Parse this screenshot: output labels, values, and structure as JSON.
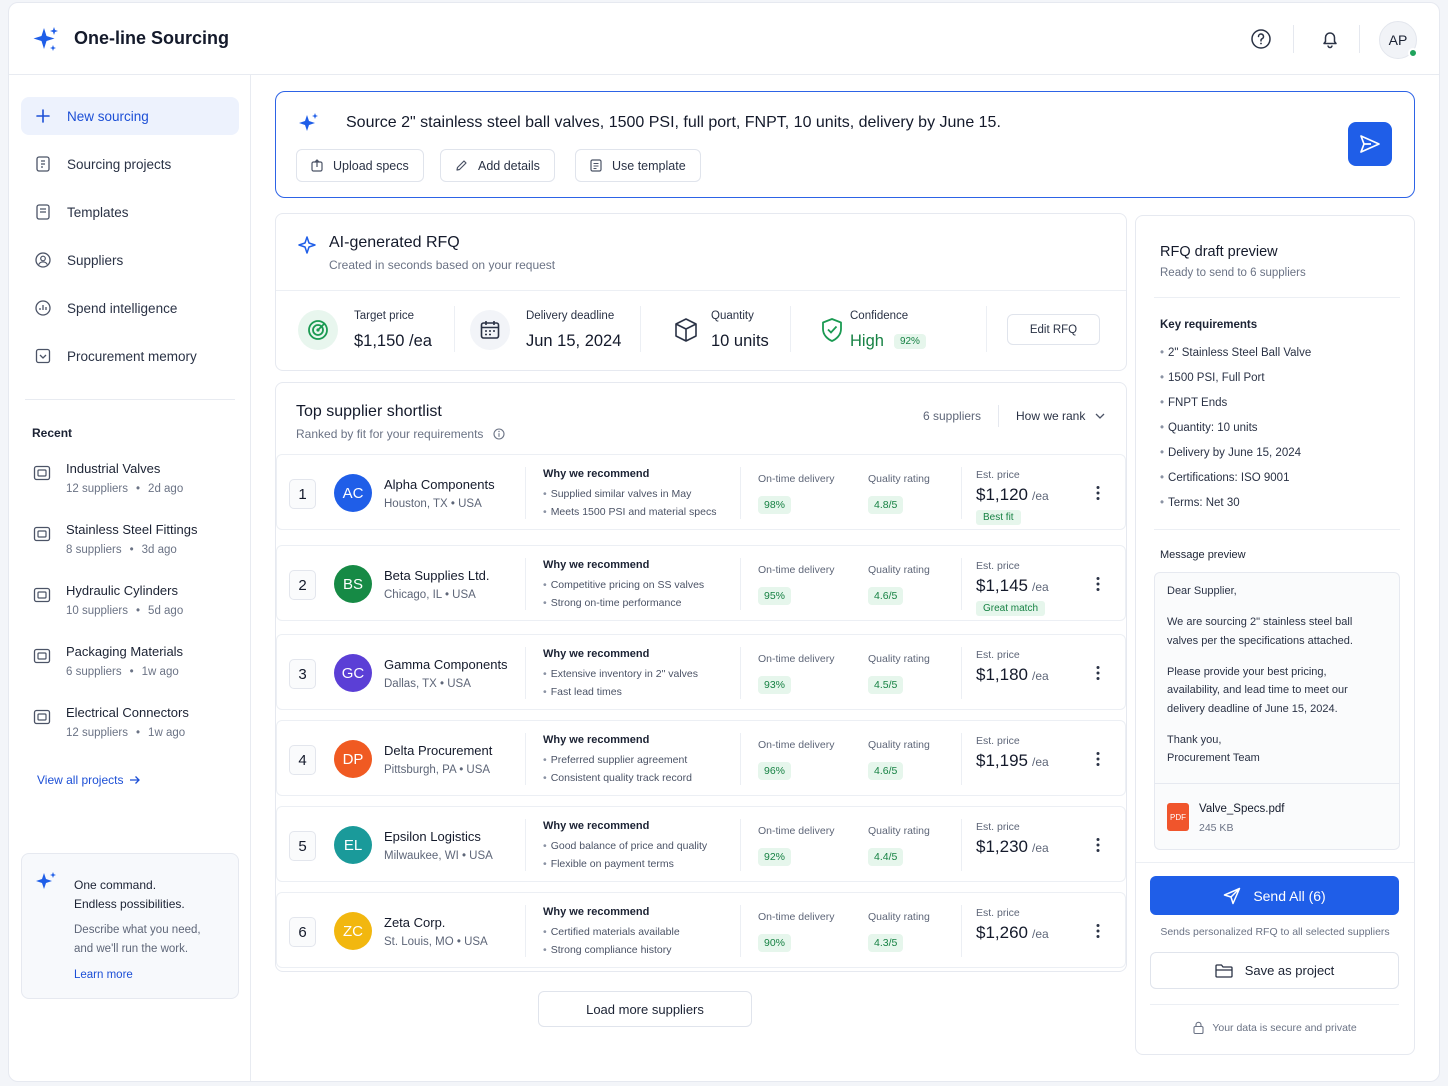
{
  "header": {
    "app_title": "One-line Sourcing",
    "avatar_initials": "AP",
    "brand_color": "#1f5ee8"
  },
  "sidebar": {
    "nav": [
      {
        "label": "New sourcing",
        "icon": "plus-icon",
        "active": true
      },
      {
        "label": "Sourcing projects",
        "icon": "document-icon"
      },
      {
        "label": "Templates",
        "icon": "template-icon"
      },
      {
        "label": "Suppliers",
        "icon": "suppliers-icon"
      },
      {
        "label": "Spend intelligence",
        "icon": "chart-icon"
      },
      {
        "label": "Procurement memory",
        "icon": "memory-icon"
      }
    ],
    "recent_heading": "Recent",
    "recent": [
      {
        "name": "Industrial Valves",
        "suppliers": "12 suppliers",
        "sep": "•",
        "age": "2d ago"
      },
      {
        "name": "Stainless Steel Fittings",
        "suppliers": "8 suppliers",
        "sep": "•",
        "age": "3d ago"
      },
      {
        "name": "Hydraulic Cylinders",
        "suppliers": "10 suppliers",
        "sep": "•",
        "age": "5d ago"
      },
      {
        "name": "Packaging Materials",
        "suppliers": "6 suppliers",
        "sep": "•",
        "age": "1w ago"
      },
      {
        "name": "Electrical Connectors",
        "suppliers": "12 suppliers",
        "sep": "•",
        "age": "1w ago"
      }
    ],
    "view_all": "View all projects",
    "promo": {
      "line1": "One command.",
      "line2": "Endless possibilities.",
      "desc1": "Describe what you need,",
      "desc2": "and we'll run the work.",
      "link": "Learn more"
    }
  },
  "command": {
    "text": "Source 2\" stainless steel ball valves, 1500 PSI, full port, FNPT, 10 units, delivery by June 15.",
    "chips": [
      "Upload specs",
      "Add details",
      "Use template"
    ]
  },
  "rfq": {
    "title": "AI-generated RFQ",
    "subtitle": "Created in seconds based on your request",
    "metrics": {
      "target_price_label": "Target price",
      "target_price_value": "$1,150 /ea",
      "delivery_label": "Delivery deadline",
      "delivery_value": "Jun 15, 2024",
      "quantity_label": "Quantity",
      "quantity_value": "10 units",
      "confidence_label": "Confidence",
      "confidence_value": "High",
      "confidence_pct": "92%"
    },
    "edit_label": "Edit RFQ"
  },
  "shortlist": {
    "title": "Top supplier shortlist",
    "subtitle": "Ranked by fit for your requirements",
    "count": "6 suppliers",
    "rank_label": "How we rank",
    "why_label": "Why we recommend",
    "ontime_label": "On-time delivery",
    "quality_label": "Quality rating",
    "price_label": "Est. price",
    "unit": "/ea",
    "suppliers": [
      {
        "rank": "1",
        "initials": "AC",
        "color": "#1f5ee8",
        "name": "Alpha Components",
        "loc": "Houston, TX • USA",
        "r1": "Supplied similar valves in May",
        "r2": "Meets 1500 PSI and material specs",
        "ontime": "98%",
        "quality": "4.8/5",
        "price": "$1,120",
        "badge": "Best fit"
      },
      {
        "rank": "2",
        "initials": "BS",
        "color": "#168a45",
        "name": "Beta Supplies Ltd.",
        "loc": "Chicago, IL • USA",
        "r1": "Competitive pricing on SS valves",
        "r2": "Strong on-time performance",
        "ontime": "95%",
        "quality": "4.6/5",
        "price": "$1,145",
        "badge": "Great match"
      },
      {
        "rank": "3",
        "initials": "GC",
        "color": "#5b3fd6",
        "name": "Gamma Components",
        "loc": "Dallas, TX • USA",
        "r1": "Extensive inventory in 2\" valves",
        "r2": "Fast lead times",
        "ontime": "93%",
        "quality": "4.5/5",
        "price": "$1,180",
        "badge": ""
      },
      {
        "rank": "4",
        "initials": "DP",
        "color": "#f05a22",
        "name": "Delta Procurement",
        "loc": "Pittsburgh, PA • USA",
        "r1": "Preferred supplier agreement",
        "r2": "Consistent quality track record",
        "ontime": "96%",
        "quality": "4.6/5",
        "price": "$1,195",
        "badge": ""
      },
      {
        "rank": "5",
        "initials": "EL",
        "color": "#1a9a9a",
        "name": "Epsilon Logistics",
        "loc": "Milwaukee, WI • USA",
        "r1": "Good balance of price and quality",
        "r2": "Flexible on payment terms",
        "ontime": "92%",
        "quality": "4.4/5",
        "price": "$1,230",
        "badge": ""
      },
      {
        "rank": "6",
        "initials": "ZC",
        "color": "#f2b70f",
        "name": "Zeta Corp.",
        "loc": "St. Louis, MO • USA",
        "r1": "Certified materials available",
        "r2": "Strong compliance history",
        "ontime": "90%",
        "quality": "4.3/5",
        "price": "$1,260",
        "badge": ""
      }
    ],
    "load_more": "Load more suppliers"
  },
  "preview": {
    "title": "RFQ draft preview",
    "subtitle": "Ready to send to 6 suppliers",
    "requirements_heading": "Key requirements",
    "requirements": [
      "2\" Stainless Steel Ball Valve",
      "1500 PSI, Full Port",
      "FNPT Ends",
      "Quantity: 10 units",
      "Delivery by June 15, 2024",
      "Certifications: ISO 9001",
      "Terms: Net 30"
    ],
    "message_heading": "Message preview",
    "message_lines": [
      "Dear Supplier,",
      "We are sourcing 2\" stainless steel ball",
      "valves per the specifications attached.",
      "Please provide your best pricing,",
      "availability, and lead time to meet our",
      "delivery deadline of June 15, 2024.",
      "Thank you,",
      "Procurement Team"
    ],
    "attachment_name": "Valve_Specs.pdf",
    "attachment_size": "245 KB",
    "attachment_type": "PDF",
    "send_label": "Send All (6)",
    "send_note": "Sends personalized RFQ to all selected suppliers",
    "save_label": "Save as project",
    "secure_note": "Your data is secure and private"
  }
}
